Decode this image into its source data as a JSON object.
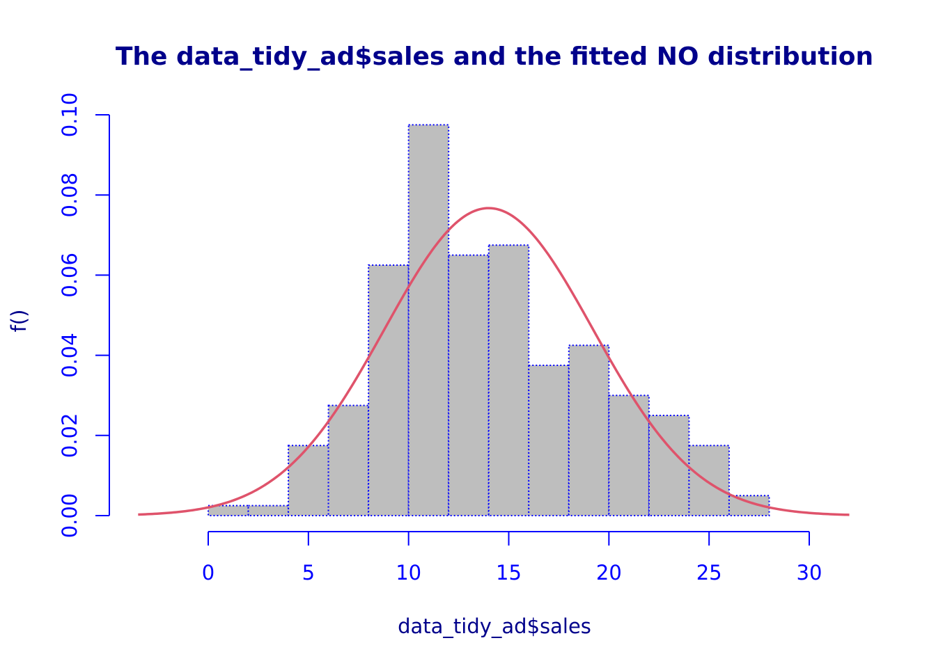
{
  "chart_data": {
    "type": "bar",
    "title": "The data_tidy_ad$sales and the fitted NO distribution",
    "xlabel": "data_tidy_ad$sales",
    "ylabel": "f()",
    "bins": [
      {
        "from": 0,
        "to": 2,
        "density": 0.0025
      },
      {
        "from": 2,
        "to": 4,
        "density": 0.0025
      },
      {
        "from": 4,
        "to": 6,
        "density": 0.0175
      },
      {
        "from": 6,
        "to": 8,
        "density": 0.0275
      },
      {
        "from": 8,
        "to": 10,
        "density": 0.0625
      },
      {
        "from": 10,
        "to": 12,
        "density": 0.0975
      },
      {
        "from": 12,
        "to": 14,
        "density": 0.065
      },
      {
        "from": 14,
        "to": 16,
        "density": 0.0675
      },
      {
        "from": 16,
        "to": 18,
        "density": 0.0375
      },
      {
        "from": 18,
        "to": 20,
        "density": 0.0425
      },
      {
        "from": 20,
        "to": 22,
        "density": 0.03
      },
      {
        "from": 22,
        "to": 24,
        "density": 0.025
      },
      {
        "from": 24,
        "to": 26,
        "density": 0.0175
      },
      {
        "from": 26,
        "to": 28,
        "density": 0.005
      }
    ],
    "fitted_curve": {
      "distribution": "NO",
      "mu": 14.0,
      "sigma": 5.2,
      "x_range": [
        -3.5,
        32
      ]
    },
    "x_ticks": [
      "0",
      "5",
      "10",
      "15",
      "20",
      "25",
      "30"
    ],
    "y_ticks": [
      "0.00",
      "0.02",
      "0.04",
      "0.06",
      "0.08",
      "0.10"
    ],
    "xlim": [
      -3.5,
      32
    ],
    "ylim": [
      0,
      0.1
    ],
    "grid": false,
    "colors": {
      "title": "#00008B",
      "axis_labels": "#00008B",
      "axes": "#0000FF",
      "bar_fill": "#BEBEBE",
      "bar_border": "#0000FF",
      "curve": "#DF536B"
    }
  }
}
